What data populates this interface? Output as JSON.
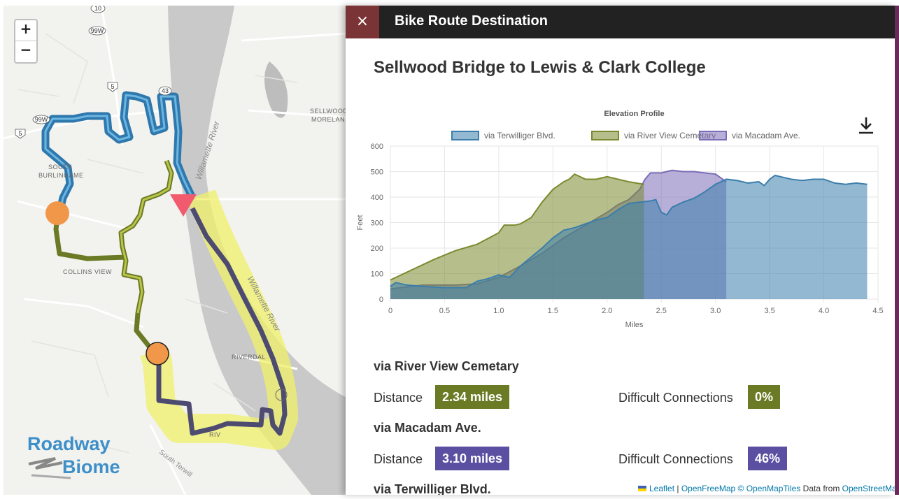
{
  "map": {
    "zoom_in": "+",
    "zoom_out": "−",
    "shields": [
      "10",
      "99W",
      "5",
      "43",
      "99W",
      "5"
    ],
    "labels": {
      "sellwood": "SELLWOOD",
      "moreland": "MORELAN",
      "burlingame_1": "SOUTH",
      "burlingame_2": "BURLINGAME",
      "collins_view": "COLLINS VIEW",
      "riverdale": "RIVERDAL",
      "river_1": "Willamette River",
      "river_2": "Willamette River",
      "south_terwilliger": "South Terwill",
      "riv": "RIV"
    },
    "logo": {
      "word1": "Roadway",
      "word2": "Biome"
    }
  },
  "panel": {
    "close_label": "×",
    "header_title": "Bike Route Destination",
    "route_title": "Sellwood Bridge to Lewis & Clark College"
  },
  "chart_data": {
    "type": "area",
    "title": "Elevation Profile",
    "xlabel": "Miles",
    "ylabel": "Feet",
    "xlim": [
      0,
      4.5
    ],
    "ylim": [
      0,
      600
    ],
    "xticks": [
      "0",
      "0.5",
      "1.0",
      "1.5",
      "2.0",
      "2.5",
      "3.0",
      "3.5",
      "4.0",
      "4.5"
    ],
    "yticks": [
      "0",
      "100",
      "200",
      "300",
      "400",
      "500",
      "600"
    ],
    "legend_position": "top",
    "series": [
      {
        "name": "via Terwilliger Blvd.",
        "color": "#3b7eab",
        "x": [
          0,
          0.05,
          0.15,
          0.3,
          0.5,
          0.7,
          0.8,
          0.9,
          1.0,
          1.1,
          1.2,
          1.3,
          1.4,
          1.5,
          1.6,
          1.7,
          1.8,
          1.9,
          2.0,
          2.1,
          2.2,
          2.3,
          2.4,
          2.45,
          2.5,
          2.55,
          2.6,
          2.7,
          2.8,
          2.9,
          3.0,
          3.1,
          3.2,
          3.3,
          3.4,
          3.45,
          3.5,
          3.55,
          3.6,
          3.7,
          3.8,
          3.9,
          4.0,
          4.1,
          4.2,
          4.3,
          4.4
        ],
        "y": [
          50,
          65,
          55,
          50,
          45,
          45,
          70,
          80,
          95,
          85,
          130,
          165,
          200,
          240,
          270,
          280,
          295,
          310,
          320,
          350,
          375,
          380,
          385,
          390,
          340,
          330,
          360,
          380,
          395,
          420,
          450,
          470,
          465,
          455,
          460,
          445,
          470,
          485,
          480,
          470,
          465,
          470,
          470,
          455,
          450,
          455,
          450
        ]
      },
      {
        "name": "via River View Cemetary",
        "color": "#7a8a2e",
        "x": [
          0,
          0.2,
          0.4,
          0.6,
          0.8,
          1.0,
          1.05,
          1.15,
          1.2,
          1.3,
          1.4,
          1.5,
          1.6,
          1.65,
          1.7,
          1.8,
          1.9,
          2.0,
          2.1,
          2.2,
          2.34
        ],
        "y": [
          75,
          115,
          155,
          190,
          215,
          260,
          290,
          290,
          295,
          320,
          380,
          430,
          460,
          470,
          490,
          470,
          470,
          480,
          470,
          460,
          450
        ]
      },
      {
        "name": "via Macadam Ave.",
        "color": "#7b6db8",
        "x": [
          0,
          0.3,
          0.6,
          0.8,
          1.0,
          1.2,
          1.4,
          1.6,
          1.8,
          2.0,
          2.1,
          2.2,
          2.3,
          2.35,
          2.4,
          2.5,
          2.6,
          2.7,
          2.8,
          2.9,
          3.0,
          3.1
        ],
        "y": [
          40,
          55,
          55,
          60,
          85,
          130,
          180,
          240,
          290,
          340,
          370,
          390,
          430,
          470,
          495,
          495,
          505,
          500,
          500,
          495,
          490,
          460
        ]
      }
    ]
  },
  "download_icon": "download-icon",
  "routes": [
    {
      "title": "via River View Cemetary",
      "distance_label": "Distance",
      "distance": "2.34 miles",
      "diff_label": "Difficult Connections",
      "diff": "0%",
      "color": "#6b7a24"
    },
    {
      "title": "via Macadam Ave.",
      "distance_label": "Distance",
      "distance": "3.10 miles",
      "diff_label": "Difficult Connections",
      "diff": "46%",
      "color": "#5a4fa0"
    },
    {
      "title": "via Terwilliger Blvd."
    }
  ],
  "attribution": {
    "leaflet": "Leaflet",
    "sep1": " | ",
    "openfreemap": "OpenFreeMap",
    "openmaptiles": " © OpenMapTiles",
    "data_from": " Data from ",
    "osm": "OpenStreetMa"
  }
}
